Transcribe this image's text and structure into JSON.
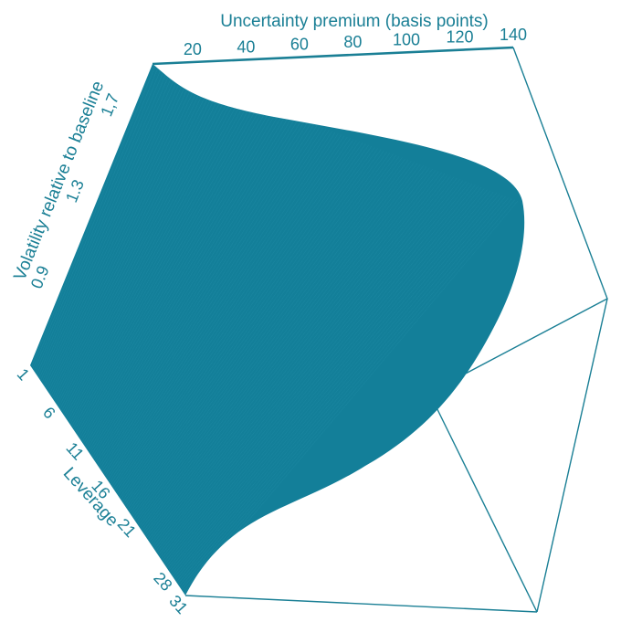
{
  "chart_data": {
    "type": "surface",
    "title": "",
    "x_axis": {
      "label": "Uncertainty premium (basis points)",
      "ticks": [
        20,
        40,
        60,
        80,
        100,
        120,
        140
      ],
      "range": [
        5,
        140
      ]
    },
    "y_axis": {
      "label": "Leverage",
      "ticks": [
        1,
        6,
        11,
        16,
        21,
        28,
        31
      ],
      "tick_labels": [
        "1",
        "6",
        "11",
        "16",
        "21",
        "28",
        "31"
      ],
      "range": [
        1,
        31
      ]
    },
    "z_axis": {
      "label": "Volatility relative to baseline",
      "ticks": [
        0.9,
        1.3,
        1.7
      ],
      "tick_labels": [
        "0.9",
        "1.3",
        "1,7"
      ],
      "range": [
        0.5,
        1.9
      ]
    },
    "grid": false,
    "legend": "none",
    "surface_color": "#137f99",
    "line_color": "#2f9ab5",
    "box_color": "#1a7f95"
  }
}
